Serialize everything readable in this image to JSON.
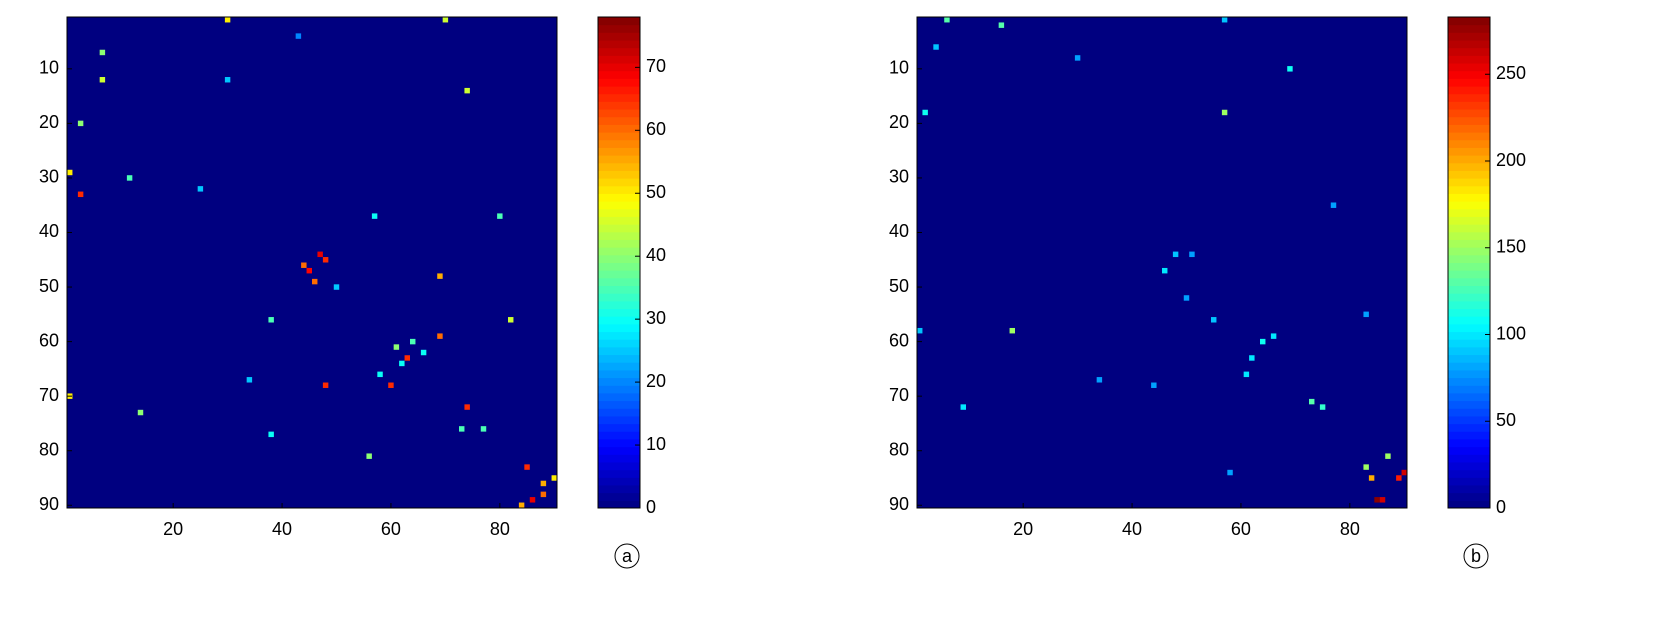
{
  "chart_data": [
    {
      "type": "heatmap",
      "label": "a",
      "colormap": "jet",
      "y_reversed": true,
      "xlim": [
        0.5,
        90.5
      ],
      "ylim": [
        0.5,
        90.5
      ],
      "xticks": [
        20,
        40,
        60,
        80
      ],
      "yticks": [
        10,
        20,
        30,
        40,
        50,
        60,
        70,
        80,
        90
      ],
      "clim": [
        0,
        78
      ],
      "cticks": [
        0,
        10,
        20,
        30,
        40,
        50,
        60,
        70
      ],
      "x": [
        47,
        48,
        45,
        44,
        46,
        61,
        63,
        60,
        48,
        85,
        86,
        88,
        88,
        74,
        69,
        69,
        1,
        3,
        30,
        70,
        1,
        12,
        7,
        7,
        3,
        74,
        80,
        82,
        56,
        14,
        38,
        57,
        38,
        73,
        77,
        64,
        66,
        62,
        50,
        30,
        43,
        25,
        58,
        34,
        90,
        84
      ],
      "y": [
        44,
        45,
        47,
        46,
        49,
        61,
        63,
        68,
        68,
        83,
        89,
        88,
        86,
        72,
        59,
        48,
        29,
        33,
        1,
        1,
        70,
        30,
        7,
        12,
        20,
        14,
        37,
        56,
        81,
        73,
        56,
        37,
        77,
        76,
        76,
        60,
        62,
        64,
        50,
        12,
        4,
        32,
        66,
        67,
        85,
        90
      ],
      "values": [
        70,
        65,
        68,
        60,
        60,
        40,
        65,
        65,
        65,
        65,
        70,
        60,
        55,
        65,
        60,
        55,
        50,
        65,
        50,
        45,
        50,
        35,
        40,
        45,
        40,
        45,
        35,
        45,
        40,
        40,
        35,
        30,
        30,
        35,
        35,
        35,
        30,
        30,
        25,
        25,
        20,
        25,
        30,
        25,
        50,
        55
      ]
    },
    {
      "type": "heatmap",
      "label": "b",
      "colormap": "jet",
      "y_reversed": true,
      "xlim": [
        0.5,
        90.5
      ],
      "ylim": [
        0.5,
        90.5
      ],
      "xticks": [
        20,
        40,
        60,
        80
      ],
      "yticks": [
        10,
        20,
        30,
        40,
        50,
        60,
        70,
        80,
        90
      ],
      "clim": [
        0,
        283
      ],
      "cticks": [
        0,
        50,
        100,
        150,
        200,
        250
      ],
      "x": [
        85,
        86,
        90,
        89,
        87,
        84,
        57,
        18,
        73,
        75,
        6,
        16,
        69,
        2,
        66,
        64,
        62,
        61,
        46,
        50,
        55,
        83,
        58,
        9,
        34,
        44,
        1,
        30,
        57,
        77,
        83,
        4,
        48,
        51
      ],
      "y": [
        89,
        89,
        84,
        85,
        81,
        85,
        18,
        58,
        71,
        72,
        1,
        2,
        10,
        18,
        59,
        60,
        63,
        66,
        47,
        52,
        56,
        83,
        84,
        72,
        67,
        68,
        58,
        8,
        1,
        35,
        55,
        6,
        44,
        44
      ],
      "values": [
        280,
        260,
        260,
        240,
        150,
        200,
        150,
        150,
        130,
        120,
        130,
        130,
        110,
        110,
        100,
        110,
        100,
        100,
        100,
        80,
        90,
        150,
        80,
        100,
        80,
        80,
        90,
        80,
        90,
        80,
        80,
        90,
        90,
        80
      ]
    }
  ]
}
